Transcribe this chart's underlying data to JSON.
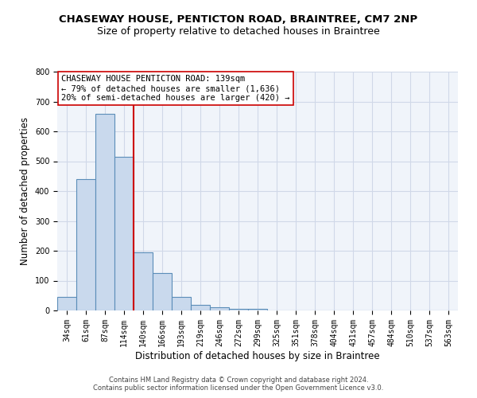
{
  "title": "CHASEWAY HOUSE, PENTICTON ROAD, BRAINTREE, CM7 2NP",
  "subtitle": "Size of property relative to detached houses in Braintree",
  "xlabel": "Distribution of detached houses by size in Braintree",
  "ylabel": "Number of detached properties",
  "bar_labels": [
    "34sqm",
    "61sqm",
    "87sqm",
    "114sqm",
    "140sqm",
    "166sqm",
    "193sqm",
    "219sqm",
    "246sqm",
    "272sqm",
    "299sqm",
    "325sqm",
    "351sqm",
    "378sqm",
    "404sqm",
    "431sqm",
    "457sqm",
    "484sqm",
    "510sqm",
    "537sqm",
    "563sqm"
  ],
  "bar_values": [
    45,
    440,
    660,
    515,
    195,
    125,
    45,
    20,
    10,
    5,
    5,
    0,
    0,
    0,
    0,
    0,
    0,
    0,
    0,
    0,
    0
  ],
  "bar_color": "#c9d9ed",
  "bar_edgecolor": "#5b8db8",
  "bar_linewidth": 0.8,
  "vline_x": 3.5,
  "vline_color": "#cc0000",
  "vline_linewidth": 1.5,
  "annotation_title": "CHASEWAY HOUSE PENTICTON ROAD: 139sqm",
  "annotation_line1": "← 79% of detached houses are smaller (1,636)",
  "annotation_line2": "20% of semi-detached houses are larger (420) →",
  "annotation_box_edgecolor": "#cc0000",
  "ylim": [
    0,
    800
  ],
  "yticks": [
    0,
    100,
    200,
    300,
    400,
    500,
    600,
    700,
    800
  ],
  "grid_color": "#d0d8e8",
  "background_color": "#f0f4fa",
  "footer_line1": "Contains HM Land Registry data © Crown copyright and database right 2024.",
  "footer_line2": "Contains public sector information licensed under the Open Government Licence v3.0.",
  "title_fontsize": 9.5,
  "subtitle_fontsize": 9,
  "tick_fontsize": 7,
  "ylabel_fontsize": 8.5,
  "xlabel_fontsize": 8.5,
  "annotation_fontsize": 7.5,
  "footer_fontsize": 6
}
